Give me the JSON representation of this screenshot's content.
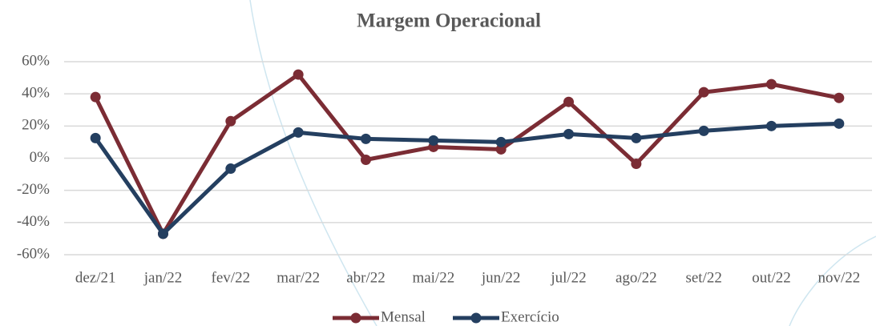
{
  "chart_data": {
    "type": "line",
    "title": "Margem Operacional",
    "categories": [
      "dez/21",
      "jan/22",
      "fev/22",
      "mar/22",
      "abr/22",
      "mai/22",
      "jun/22",
      "jul/22",
      "ago/22",
      "set/22",
      "out/22",
      "nov/22"
    ],
    "series": [
      {
        "name": "Mensal",
        "color": "#7b2c34",
        "values": [
          38,
          -47,
          23,
          52,
          -1,
          7,
          5.5,
          35,
          -3.5,
          41,
          46,
          37.5
        ]
      },
      {
        "name": "Exercício",
        "color": "#243f60",
        "values": [
          12.5,
          -47,
          -6.5,
          16,
          12,
          11,
          10,
          15,
          12.5,
          17,
          20,
          21.5
        ]
      }
    ],
    "ylim": [
      -60,
      60
    ],
    "yticks": [
      {
        "value": -60,
        "label": "-60%"
      },
      {
        "value": -40,
        "label": "-40%"
      },
      {
        "value": -20,
        "label": "-20%"
      },
      {
        "value": 0,
        "label": "0%"
      },
      {
        "value": 20,
        "label": "20%"
      },
      {
        "value": 40,
        "label": "40%"
      },
      {
        "value": 60,
        "label": "60%"
      }
    ],
    "grid": true,
    "legend": "bottom"
  }
}
